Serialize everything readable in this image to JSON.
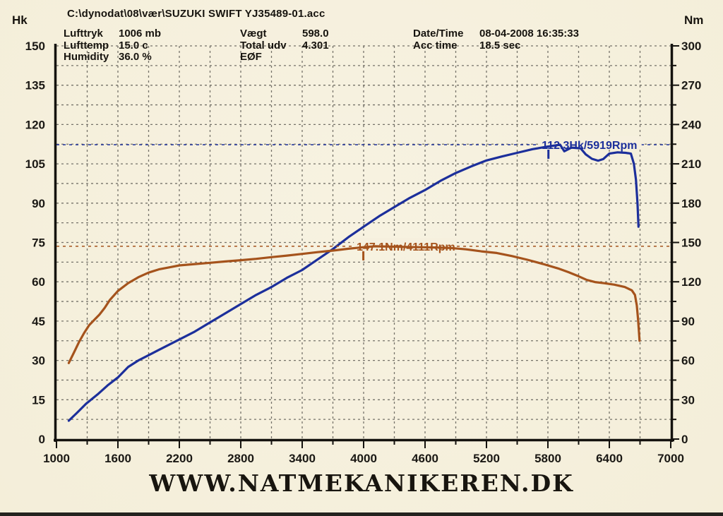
{
  "header": {
    "file_path": "C:\\dynodat\\08\\vær\\SUZUKI SWIFT YJ35489-01.acc",
    "params_col1": [
      {
        "label": "Lufttryk",
        "value": "1006 mb"
      },
      {
        "label": "Lufttemp",
        "value": "15.0 c"
      },
      {
        "label": "Humidity",
        "value": "36.0 %"
      }
    ],
    "params_col2": [
      {
        "label": "Vægt",
        "value": "598.0"
      },
      {
        "label": "Total udv",
        "value": "4.301"
      },
      {
        "label": "EØF",
        "value": ""
      }
    ],
    "params_col3": [
      {
        "label": "Date/Time",
        "value": "08-04-2008 16:35:33"
      },
      {
        "label": "Acc time",
        "value": "18.5 sec"
      }
    ]
  },
  "footer": {
    "website": "WWW.NATMEKANIKEREN.DK"
  },
  "chart_data": {
    "type": "line",
    "title": "",
    "background": "#f6f0de",
    "grid": true,
    "x_axis": {
      "label": "Rpm",
      "min": 1000,
      "max": 7000,
      "minor_step": 300,
      "ticks": [
        1000,
        1600,
        2200,
        2800,
        3400,
        4000,
        4600,
        5200,
        5800,
        6400,
        7000
      ]
    },
    "y_left": {
      "label": "Hk",
      "min": 0,
      "max": 150,
      "minor_step": 7.5,
      "ticks": [
        0,
        15,
        30,
        45,
        60,
        75,
        90,
        105,
        120,
        135,
        150
      ]
    },
    "y_right": {
      "label": "Nm",
      "min": 0,
      "max": 300,
      "minor_step": 15,
      "ticks": [
        0,
        30,
        60,
        90,
        120,
        150,
        180,
        210,
        240,
        270,
        300
      ]
    },
    "series": [
      {
        "name": "power",
        "unit": "Hk",
        "axis": "left",
        "color": "#1c2f9b",
        "peak": {
          "value": 112.3,
          "rpm": 5919,
          "label": "112.3Hk/5919Rpm"
        },
        "points": [
          [
            1120,
            7
          ],
          [
            1200,
            10
          ],
          [
            1290,
            13.5
          ],
          [
            1400,
            17
          ],
          [
            1500,
            20.5
          ],
          [
            1600,
            23.5
          ],
          [
            1700,
            27.5
          ],
          [
            1800,
            30
          ],
          [
            1900,
            32
          ],
          [
            2000,
            34
          ],
          [
            2100,
            36
          ],
          [
            2200,
            38
          ],
          [
            2350,
            41
          ],
          [
            2500,
            44.5
          ],
          [
            2650,
            48
          ],
          [
            2800,
            51.5
          ],
          [
            2950,
            55
          ],
          [
            3100,
            58
          ],
          [
            3250,
            61.5
          ],
          [
            3400,
            64.5
          ],
          [
            3550,
            68.5
          ],
          [
            3700,
            72.5
          ],
          [
            3850,
            77
          ],
          [
            4000,
            81
          ],
          [
            4150,
            85
          ],
          [
            4300,
            88.5
          ],
          [
            4450,
            92
          ],
          [
            4600,
            95
          ],
          [
            4750,
            98.5
          ],
          [
            4900,
            101.5
          ],
          [
            5050,
            104
          ],
          [
            5200,
            106.3
          ],
          [
            5350,
            107.8
          ],
          [
            5500,
            109.2
          ],
          [
            5650,
            110.6
          ],
          [
            5800,
            111.6
          ],
          [
            5919,
            112.3
          ],
          [
            5960,
            109.8
          ],
          [
            6030,
            111.2
          ],
          [
            6120,
            110.9
          ],
          [
            6170,
            108.6
          ],
          [
            6230,
            106.9
          ],
          [
            6290,
            106.2
          ],
          [
            6340,
            106.8
          ],
          [
            6400,
            108.9
          ],
          [
            6480,
            109.4
          ],
          [
            6560,
            109.2
          ],
          [
            6610,
            108.9
          ],
          [
            6640,
            105
          ],
          [
            6660,
            99
          ],
          [
            6675,
            90
          ],
          [
            6685,
            81
          ]
        ]
      },
      {
        "name": "torque",
        "unit": "Nm",
        "axis": "right",
        "color": "#a5531c",
        "peak": {
          "value": 147.1,
          "rpm": 4111,
          "label": "147.1Nm/4111Rpm"
        },
        "points": [
          [
            1120,
            58
          ],
          [
            1170,
            66
          ],
          [
            1220,
            74
          ],
          [
            1270,
            81
          ],
          [
            1320,
            87
          ],
          [
            1370,
            91
          ],
          [
            1420,
            95
          ],
          [
            1470,
            100
          ],
          [
            1520,
            106
          ],
          [
            1600,
            113
          ],
          [
            1700,
            119
          ],
          [
            1800,
            123.5
          ],
          [
            1900,
            127
          ],
          [
            2000,
            129.5
          ],
          [
            2100,
            131
          ],
          [
            2200,
            132.5
          ],
          [
            2350,
            133.5
          ],
          [
            2500,
            134.5
          ],
          [
            2650,
            135.5
          ],
          [
            2800,
            136.5
          ],
          [
            2950,
            137.5
          ],
          [
            3100,
            138.8
          ],
          [
            3250,
            140
          ],
          [
            3400,
            141.3
          ],
          [
            3550,
            142.6
          ],
          [
            3700,
            143.8
          ],
          [
            3850,
            145.2
          ],
          [
            4000,
            146.4
          ],
          [
            4111,
            147.1
          ],
          [
            4250,
            146.9
          ],
          [
            4400,
            146.6
          ],
          [
            4550,
            146.4
          ],
          [
            4700,
            146.2
          ],
          [
            4850,
            145.8
          ],
          [
            5000,
            144.8
          ],
          [
            5150,
            143.2
          ],
          [
            5300,
            142
          ],
          [
            5450,
            139.6
          ],
          [
            5600,
            136.8
          ],
          [
            5750,
            133.6
          ],
          [
            5900,
            130.2
          ],
          [
            6000,
            127.4
          ],
          [
            6100,
            124.2
          ],
          [
            6180,
            121.4
          ],
          [
            6260,
            119.8
          ],
          [
            6350,
            118.9
          ],
          [
            6450,
            117.8
          ],
          [
            6550,
            116
          ],
          [
            6620,
            113.5
          ],
          [
            6650,
            110
          ],
          [
            6668,
            102
          ],
          [
            6680,
            92
          ],
          [
            6688,
            83
          ],
          [
            6695,
            75
          ]
        ]
      }
    ]
  }
}
